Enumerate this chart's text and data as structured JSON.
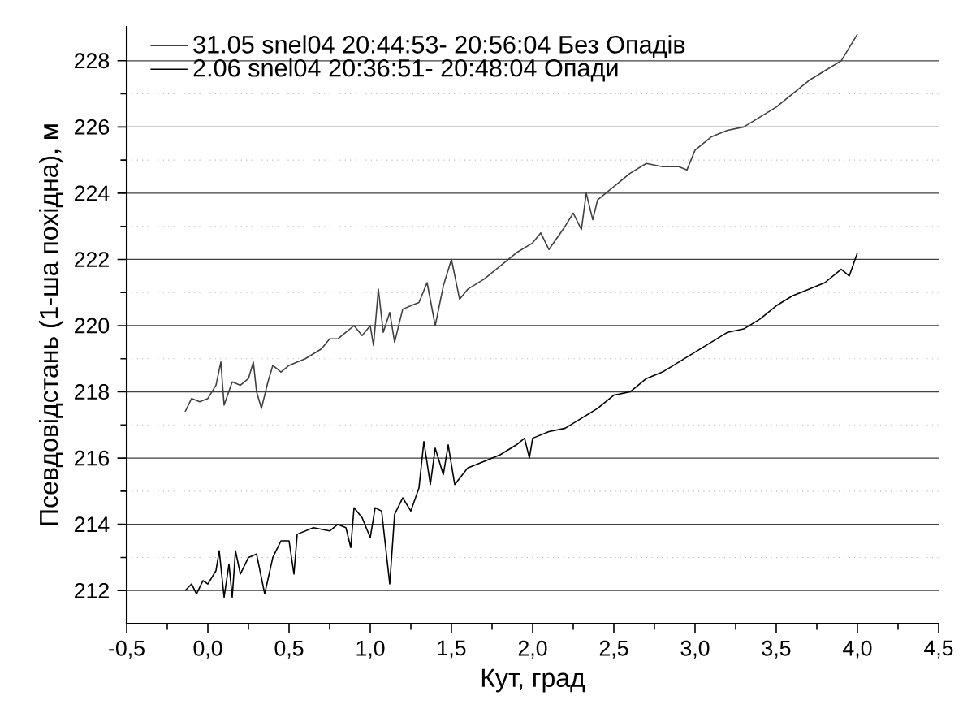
{
  "chart_data": {
    "type": "line",
    "xlabel": "Кут, град",
    "ylabel": "Псевдовідстань (1-ша похідна), м",
    "xlim": [
      -0.5,
      4.5
    ],
    "ylim": [
      211,
      229.05
    ],
    "xticks": [
      {
        "value": -0.5,
        "label": "-0,5"
      },
      {
        "value": 0,
        "label": "0,0"
      },
      {
        "value": 0.5,
        "label": "0,5"
      },
      {
        "value": 1,
        "label": "1,0"
      },
      {
        "value": 1.5,
        "label": "1,5"
      },
      {
        "value": 2,
        "label": "2,0"
      },
      {
        "value": 2.5,
        "label": "2,5"
      },
      {
        "value": 3,
        "label": "3,0"
      },
      {
        "value": 3.5,
        "label": "3,5"
      },
      {
        "value": 4,
        "label": "4,0"
      },
      {
        "value": 4.5,
        "label": "4,5"
      }
    ],
    "yticks": [
      212,
      214,
      216,
      218,
      220,
      222,
      224,
      226,
      228
    ],
    "grid": "y",
    "legend": "top left",
    "marker": "none",
    "line_style": "solid",
    "series": [
      {
        "name": "31.05 snel04 20:44:53- 20:56:04 Без Опадів",
        "color": "#404040",
        "x": [
          -0.14,
          -0.1,
          -0.05,
          0.0,
          0.05,
          0.08,
          0.1,
          0.15,
          0.2,
          0.25,
          0.28,
          0.3,
          0.33,
          0.37,
          0.4,
          0.45,
          0.5,
          0.6,
          0.7,
          0.75,
          0.8,
          0.85,
          0.9,
          0.95,
          1.0,
          1.02,
          1.05,
          1.08,
          1.12,
          1.15,
          1.2,
          1.3,
          1.35,
          1.4,
          1.45,
          1.5,
          1.55,
          1.6,
          1.7,
          1.8,
          1.9,
          2.0,
          2.05,
          2.1,
          2.2,
          2.25,
          2.3,
          2.33,
          2.37,
          2.4,
          2.5,
          2.6,
          2.7,
          2.8,
          2.9,
          2.95,
          3.0,
          3.1,
          3.2,
          3.3,
          3.4,
          3.5,
          3.6,
          3.7,
          3.8,
          3.9,
          4.0
        ],
        "values": [
          217.4,
          217.8,
          217.7,
          217.8,
          218.2,
          218.9,
          217.6,
          218.3,
          218.2,
          218.4,
          218.9,
          218.0,
          217.5,
          218.3,
          218.8,
          218.6,
          218.8,
          219.0,
          219.3,
          219.6,
          219.6,
          219.8,
          220.0,
          219.7,
          220.0,
          219.4,
          221.1,
          219.8,
          220.4,
          219.5,
          220.5,
          220.7,
          221.3,
          220.0,
          221.2,
          222.0,
          220.8,
          221.1,
          221.4,
          221.8,
          222.2,
          222.5,
          222.8,
          222.3,
          223.0,
          223.4,
          222.9,
          224.0,
          223.2,
          223.8,
          224.2,
          224.6,
          224.9,
          224.8,
          224.8,
          224.7,
          225.3,
          225.7,
          225.9,
          226.0,
          226.3,
          226.6,
          227.0,
          227.4,
          227.7,
          228.0,
          228.8
        ]
      },
      {
        "name": "2.06 snel04 20:36:51- 20:48:04 Опади",
        "color": "#000000",
        "x": [
          -0.14,
          -0.1,
          -0.07,
          -0.03,
          0.0,
          0.05,
          0.07,
          0.1,
          0.13,
          0.15,
          0.17,
          0.2,
          0.25,
          0.3,
          0.35,
          0.4,
          0.45,
          0.5,
          0.53,
          0.55,
          0.65,
          0.75,
          0.8,
          0.85,
          0.88,
          0.9,
          0.95,
          1.0,
          1.03,
          1.07,
          1.12,
          1.15,
          1.2,
          1.25,
          1.3,
          1.33,
          1.37,
          1.4,
          1.45,
          1.48,
          1.52,
          1.6,
          1.7,
          1.8,
          1.9,
          1.95,
          1.98,
          2.0,
          2.1,
          2.2,
          2.3,
          2.4,
          2.5,
          2.6,
          2.7,
          2.8,
          2.9,
          3.0,
          3.1,
          3.2,
          3.3,
          3.4,
          3.5,
          3.6,
          3.7,
          3.8,
          3.9,
          3.95,
          4.0
        ],
        "values": [
          212.0,
          212.2,
          211.9,
          212.3,
          212.2,
          212.6,
          213.2,
          211.8,
          212.8,
          211.8,
          213.2,
          212.5,
          213.0,
          213.1,
          211.9,
          213.0,
          213.5,
          213.5,
          212.5,
          213.7,
          213.9,
          213.8,
          214.0,
          213.9,
          213.3,
          214.5,
          214.2,
          213.6,
          214.5,
          214.4,
          212.2,
          214.3,
          214.8,
          214.4,
          215.1,
          216.5,
          215.2,
          216.3,
          215.5,
          216.4,
          215.2,
          215.7,
          215.9,
          216.1,
          216.4,
          216.6,
          216.0,
          216.6,
          216.8,
          216.9,
          217.2,
          217.5,
          217.9,
          218.0,
          218.4,
          218.6,
          218.9,
          219.2,
          219.5,
          219.8,
          219.9,
          220.2,
          220.6,
          220.9,
          221.1,
          221.3,
          221.7,
          221.5,
          222.2
        ]
      }
    ]
  }
}
